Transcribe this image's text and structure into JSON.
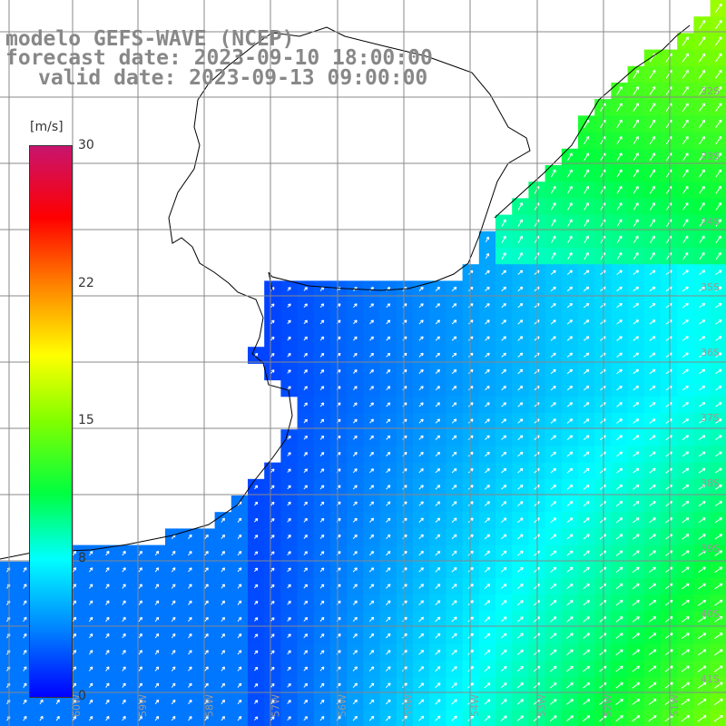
{
  "title": {
    "model": "modelo GEFS-WAVE (NCEP)",
    "forecast": "forecast date: 2023-09-10 18:00:00",
    "valid": "valid date: 2023-09-13 09:00:00"
  },
  "colorbar": {
    "unit": "[m/s]",
    "ticks": [
      "30",
      "22",
      "15",
      "8",
      "0"
    ],
    "range": [
      0,
      30
    ],
    "colors": [
      "#0000ff",
      "#0080ff",
      "#00ffff",
      "#00ff40",
      "#80ff00",
      "#ffff00",
      "#ff8000",
      "#ff0000",
      "#c8146e"
    ]
  },
  "map": {
    "type": "gridded wind speed field with direction arrows",
    "land_color": "#ffffff",
    "grid_color": "#888888",
    "lat_labels": [
      "32S",
      "33S",
      "34S",
      "35S",
      "36S",
      "37S",
      "38S",
      "39S",
      "40S",
      "41S"
    ],
    "lon_labels": [
      "60W",
      "59W",
      "58W",
      "57W",
      "56W",
      "55W",
      "54W",
      "53W",
      "52W",
      "51W"
    ]
  }
}
